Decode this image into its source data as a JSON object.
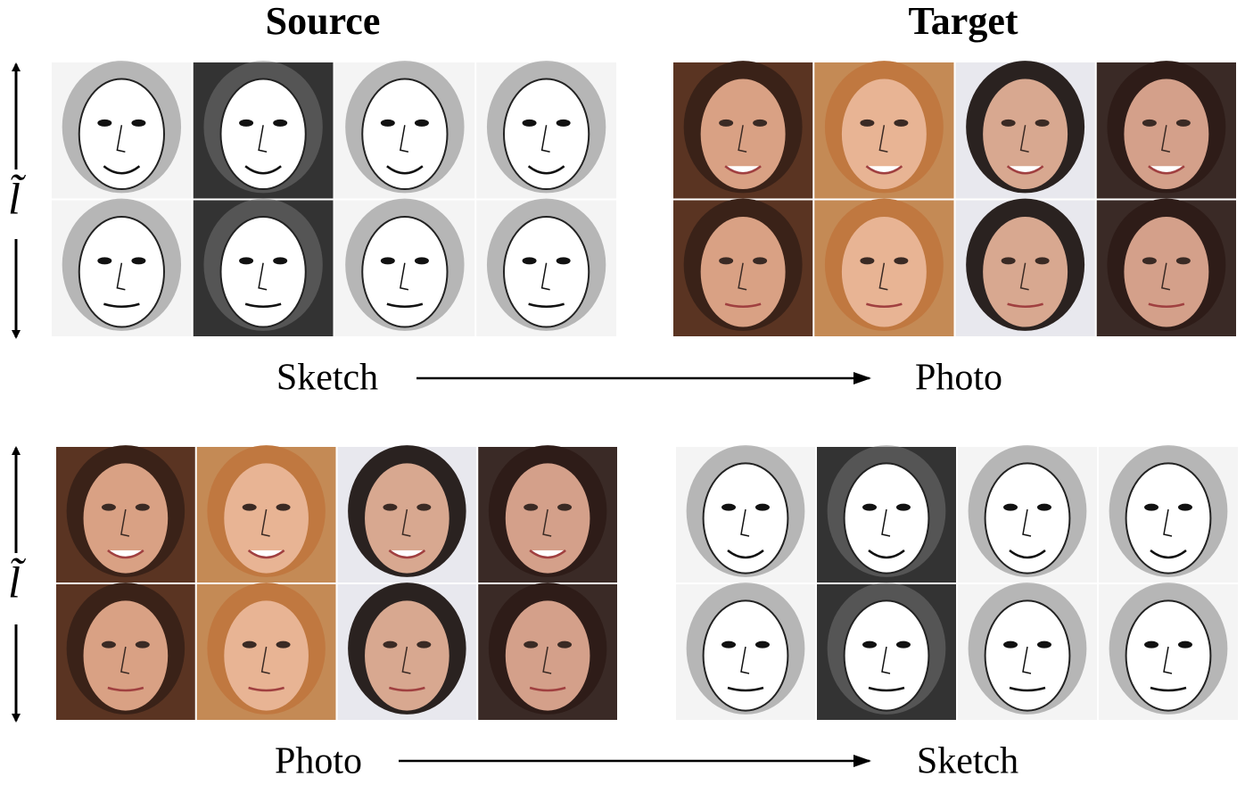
{
  "titles": [
    "Source",
    "Target"
  ],
  "rows": [
    {
      "latent": "l̃",
      "from": "Sketch",
      "to": "Photo"
    },
    {
      "latent": "l̃",
      "from": "Photo",
      "to": "Sketch"
    }
  ]
}
